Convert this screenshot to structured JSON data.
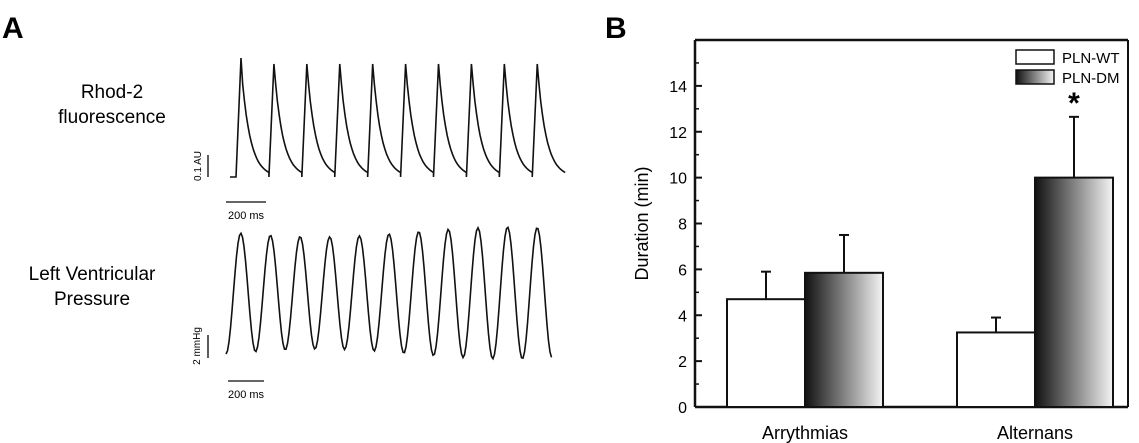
{
  "panel_a": {
    "label": "A",
    "traces": [
      {
        "name_lines": [
          "Rhod-2",
          "fluorescence"
        ],
        "scale_y_label": "0.1 AU",
        "scale_x_label": "200 ms",
        "beats": 10,
        "shape": "sawtooth"
      },
      {
        "name_lines": [
          "Left Ventricular",
          "Pressure"
        ],
        "scale_y_label": "2 mmHg",
        "scale_x_label": "200 ms",
        "beats": 11,
        "shape": "sinusoidal"
      }
    ]
  },
  "panel_b": {
    "label": "B",
    "significance_marker": "*"
  },
  "chart_data": {
    "type": "bar",
    "title": "",
    "xlabel": "",
    "ylabel": "Duration (min)",
    "ylim": [
      0,
      16
    ],
    "yticks": [
      0,
      2,
      4,
      6,
      8,
      10,
      12,
      14
    ],
    "categories": [
      "Arrythmias",
      "Alternans"
    ],
    "series": [
      {
        "name": "PLN-WT",
        "values": [
          4.7,
          3.25
        ],
        "errors": [
          1.2,
          0.65
        ],
        "fill": "white"
      },
      {
        "name": "PLN-DM",
        "values": [
          5.85,
          10.0
        ],
        "errors": [
          1.65,
          2.65
        ],
        "fill": "gradient"
      }
    ],
    "legend_position": "top-right",
    "annotations": [
      {
        "category": "Alternans",
        "series": "PLN-DM",
        "text": "*"
      }
    ]
  }
}
